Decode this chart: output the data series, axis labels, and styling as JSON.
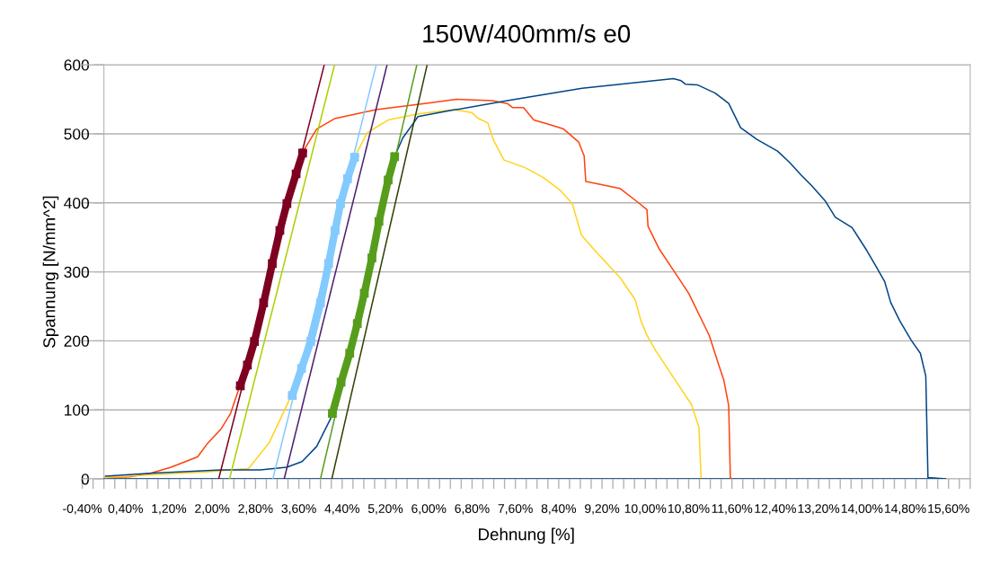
{
  "chart_data": {
    "type": "line",
    "title": "150W/400mm/s e0",
    "xlabel": "Dehnung [%]",
    "ylabel": "Spannung [N/mm^2]",
    "xlim": [
      -0.4,
      16.0
    ],
    "ylim": [
      0,
      600
    ],
    "yticks": [
      0,
      100,
      200,
      300,
      400,
      500,
      600
    ],
    "xticks": [
      {
        "value": -0.4,
        "label": "-0,40%"
      },
      {
        "value": -0.2,
        "label": null
      },
      {
        "value": 0.0,
        "label": null
      },
      {
        "value": 0.2,
        "label": null
      },
      {
        "value": 0.4,
        "label": "0,40%"
      },
      {
        "value": 0.6,
        "label": null
      },
      {
        "value": 0.8,
        "label": null
      },
      {
        "value": 1.0,
        "label": null
      },
      {
        "value": 1.2,
        "label": "1,20%"
      },
      {
        "value": 1.4,
        "label": null
      },
      {
        "value": 1.6,
        "label": null
      },
      {
        "value": 1.8,
        "label": null
      },
      {
        "value": 2.0,
        "label": "2,00%"
      },
      {
        "value": 2.2,
        "label": null
      },
      {
        "value": 2.4,
        "label": null
      },
      {
        "value": 2.6,
        "label": null
      },
      {
        "value": 2.8,
        "label": "2,80%"
      },
      {
        "value": 3.0,
        "label": null
      },
      {
        "value": 3.2,
        "label": null
      },
      {
        "value": 3.4,
        "label": null
      },
      {
        "value": 3.6,
        "label": "3,60%"
      },
      {
        "value": 3.8,
        "label": null
      },
      {
        "value": 4.0,
        "label": null
      },
      {
        "value": 4.2,
        "label": null
      },
      {
        "value": 4.4,
        "label": "4,40%"
      },
      {
        "value": 4.6,
        "label": null
      },
      {
        "value": 4.8,
        "label": null
      },
      {
        "value": 5.0,
        "label": null
      },
      {
        "value": 5.2,
        "label": "5,20%"
      },
      {
        "value": 5.4,
        "label": null
      },
      {
        "value": 5.6,
        "label": null
      },
      {
        "value": 5.8,
        "label": null
      },
      {
        "value": 6.0,
        "label": "6,00%"
      },
      {
        "value": 6.2,
        "label": null
      },
      {
        "value": 6.4,
        "label": null
      },
      {
        "value": 6.6,
        "label": null
      },
      {
        "value": 6.8,
        "label": "6,80%"
      },
      {
        "value": 7.0,
        "label": null
      },
      {
        "value": 7.2,
        "label": null
      },
      {
        "value": 7.4,
        "label": null
      },
      {
        "value": 7.6,
        "label": "7,60%"
      },
      {
        "value": 7.8,
        "label": null
      },
      {
        "value": 8.0,
        "label": null
      },
      {
        "value": 8.2,
        "label": null
      },
      {
        "value": 8.4,
        "label": "8,40%"
      },
      {
        "value": 8.6,
        "label": null
      },
      {
        "value": 8.8,
        "label": null
      },
      {
        "value": 9.0,
        "label": null
      },
      {
        "value": 9.2,
        "label": "9,20%"
      },
      {
        "value": 9.4,
        "label": null
      },
      {
        "value": 9.6,
        "label": null
      },
      {
        "value": 9.8,
        "label": null
      },
      {
        "value": 10.0,
        "label": "10,00%"
      },
      {
        "value": 10.2,
        "label": null
      },
      {
        "value": 10.4,
        "label": null
      },
      {
        "value": 10.6,
        "label": null
      },
      {
        "value": 10.8,
        "label": "10,80%"
      },
      {
        "value": 11.0,
        "label": null
      },
      {
        "value": 11.2,
        "label": null
      },
      {
        "value": 11.4,
        "label": null
      },
      {
        "value": 11.6,
        "label": "11,60%"
      },
      {
        "value": 11.8,
        "label": null
      },
      {
        "value": 12.0,
        "label": null
      },
      {
        "value": 12.2,
        "label": null
      },
      {
        "value": 12.4,
        "label": "12,40%"
      },
      {
        "value": 12.6,
        "label": null
      },
      {
        "value": 12.8,
        "label": null
      },
      {
        "value": 13.0,
        "label": null
      },
      {
        "value": 13.2,
        "label": "13,20%"
      },
      {
        "value": 13.4,
        "label": null
      },
      {
        "value": 13.6,
        "label": null
      },
      {
        "value": 13.8,
        "label": null
      },
      {
        "value": 14.0,
        "label": "14,00%"
      },
      {
        "value": 14.2,
        "label": null
      },
      {
        "value": 14.4,
        "label": null
      },
      {
        "value": 14.6,
        "label": null
      },
      {
        "value": 14.8,
        "label": "14,80%"
      },
      {
        "value": 15.0,
        "label": null
      },
      {
        "value": 15.2,
        "label": null
      },
      {
        "value": 15.4,
        "label": null
      },
      {
        "value": 15.6,
        "label": "15,60%"
      },
      {
        "value": 15.8,
        "label": null
      },
      {
        "value": 16.0,
        "label": null
      }
    ],
    "grid": "y",
    "marker": "none",
    "series": [
      {
        "color": "#004586",
        "x": [
          0.0,
          15.54
        ],
        "values": [
          0,
          0
        ]
      },
      {
        "color": "#ff420e",
        "x": [
          0.03,
          0.47,
          0.86,
          1.24,
          1.73,
          1.9,
          2.17,
          2.34,
          2.5,
          2.78,
          3.11,
          3.38,
          3.55,
          3.66,
          3.93,
          4.26,
          5.03,
          6.02,
          6.51,
          7.17,
          7.45,
          7.55,
          7.75,
          7.94,
          8.21,
          8.49,
          8.77,
          8.87,
          8.9,
          9.09,
          9.53,
          9.86,
          10.03,
          10.05,
          10.25,
          10.58,
          10.8,
          11.18,
          11.34,
          11.45,
          11.54,
          11.57,
          11.6
        ],
        "values": [
          2,
          3,
          8,
          17,
          32,
          50,
          73,
          95,
          132,
          null,
          null,
          null,
          null,
          472,
          507,
          522,
          535,
          545,
          550,
          548,
          544,
          538,
          538,
          520,
          514,
          507,
          488,
          468,
          431,
          428,
          421,
          401,
          390,
          366,
          334,
          295,
          269,
          208,
          169,
          143,
          106,
          2,
          0
        ]
      },
      {
        "color": "#ffd320",
        "x": [
          0.03,
          0.86,
          1.9,
          2.67,
          3.05,
          3.44,
          3.82,
          4.15,
          4.37,
          4.63,
          4.86,
          5.08,
          5.25,
          5.8,
          6.46,
          6.62,
          6.79,
          6.92,
          7.09,
          7.2,
          7.39,
          7.78,
          8.11,
          8.43,
          8.65,
          8.82,
          9.09,
          9.53,
          9.81,
          9.92,
          10.03,
          10.19,
          10.52,
          10.85,
          10.99,
          11.03
        ],
        "values": [
          2,
          6,
          10,
          15,
          52,
          117,
          null,
          null,
          null,
          466,
          501,
          512,
          520,
          529,
          535,
          533,
          531,
          522,
          516,
          490,
          462,
          451,
          437,
          418,
          399,
          353,
          329,
          292,
          260,
          229,
          208,
          186,
          147,
          108,
          75,
          2
        ]
      },
      {
        "color": "#004586",
        "x": [
          0.03,
          0.86,
          2.17,
          2.89,
          3.38,
          3.66,
          3.93,
          4.21,
          4.54,
          4.81,
          5.08,
          5.25,
          5.37,
          5.52,
          5.74,
          5.8,
          6.35,
          7.45,
          8.83,
          10.52,
          10.66,
          10.74,
          10.96,
          11.29,
          11.54,
          11.76,
          12.06,
          12.44,
          12.66,
          12.88,
          13.07,
          13.32,
          13.51,
          13.82,
          14.09,
          14.26,
          14.42,
          14.53,
          14.7,
          14.91,
          15.08,
          15.18,
          15.22,
          15.54
        ],
        "values": [
          4,
          8,
          13,
          13,
          17,
          25,
          47,
          91,
          null,
          null,
          null,
          null,
          467,
          494,
          518,
          525,
          533,
          548,
          566,
          580,
          577,
          572,
          571,
          559,
          544,
          509,
          492,
          475,
          459,
          440,
          425,
          403,
          379,
          364,
          331,
          308,
          286,
          256,
          229,
          201,
          182,
          149,
          2,
          0
        ]
      },
      {
        "color": "#7e0021",
        "marker": "square",
        "x": [
          2.52,
          2.65,
          2.78,
          2.95,
          3.11,
          3.25,
          3.38,
          3.55,
          3.67
        ],
        "values": [
          135,
          165,
          199,
          255,
          312,
          360,
          399,
          442,
          472
        ]
      },
      {
        "color": "#83caff",
        "marker": "square",
        "x": [
          3.48,
          3.65,
          3.82,
          4.0,
          4.15,
          4.27,
          4.37,
          4.5,
          4.63
        ],
        "values": [
          121,
          160,
          199,
          255,
          312,
          360,
          399,
          435,
          466
        ]
      },
      {
        "color": "#579d1c",
        "marker": "square",
        "x": [
          4.22,
          4.38,
          4.54,
          4.68,
          4.81,
          4.95,
          5.08,
          5.25,
          5.37
        ],
        "values": [
          95,
          140,
          182,
          225,
          269,
          320,
          373,
          433,
          467
        ]
      },
      {
        "color": "#7e0021",
        "x": [
          2.12,
          4.07
        ],
        "values": [
          0,
          600
        ]
      },
      {
        "color": "#aecf00",
        "x": [
          2.32,
          4.26
        ],
        "values": [
          0,
          600
        ]
      },
      {
        "color": "#83caff",
        "x": [
          3.12,
          5.03
        ],
        "values": [
          0,
          600
        ]
      },
      {
        "color": "#4b1f6f",
        "x": [
          3.33,
          5.23
        ],
        "values": [
          0,
          600
        ]
      },
      {
        "color": "#579d1c",
        "x": [
          4.0,
          5.78
        ],
        "values": [
          0,
          600
        ]
      },
      {
        "color": "#314004",
        "x": [
          4.21,
          5.97
        ],
        "values": [
          0,
          600
        ]
      }
    ]
  }
}
